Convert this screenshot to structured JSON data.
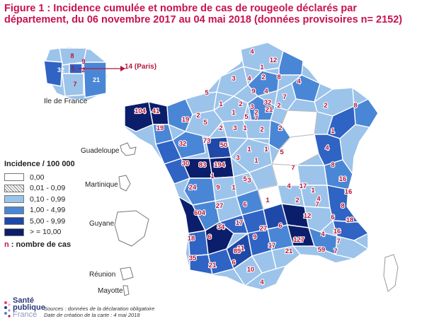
{
  "title": "Figure 1 : Incidence cumulée et nombre de cas de rougeole déclarés par département, du 06 novembre 2017 au 04 mai 2018 (données provisoires n= 2152)",
  "legend": {
    "title": "Incidence / 100 000",
    "items": [
      {
        "label": "0,00",
        "color": "#ffffff"
      },
      {
        "label": "0,01 - 0,09",
        "color": "hatched"
      },
      {
        "label": "0,10 - 0,99",
        "color": "#9cc3ea"
      },
      {
        "label": "1,00 - 4,99",
        "color": "#4a86d6"
      },
      {
        "label": "5,00 - 9,99",
        "color": "#1f49a8"
      },
      {
        "label": "> = 10,00",
        "color": "#0b1e6b"
      }
    ]
  },
  "note": {
    "prefix": "n",
    "text": " : nombre de cas"
  },
  "inset_idf": {
    "label": "Ile de France",
    "paris_callout": "14 (Paris)",
    "counts": [
      "8",
      "9",
      "2",
      "32",
      "5",
      "7",
      "21"
    ]
  },
  "territories": [
    "Guadeloupe",
    "Martinique",
    "Guyane",
    "Réunion",
    "Mayotte"
  ],
  "brand": {
    "line1": "Santé",
    "line2": "publique",
    "line3": "France"
  },
  "sources": {
    "line1": "Sources : données de la déclaration obligatoire",
    "line2": "Date de création de la carte : 4 mai 2018"
  },
  "department_counts": [
    "4",
    "12",
    "1",
    "4",
    "3",
    "4",
    "2",
    "8",
    "9",
    "4",
    "7",
    "5",
    "1",
    "2",
    "2",
    "2",
    "8",
    "3",
    "32",
    "1",
    "2",
    "2",
    "2",
    "3",
    "5",
    "7",
    "21",
    "104",
    "41",
    "19",
    "19",
    "5",
    "1",
    "2",
    "2",
    "1",
    "32",
    "73",
    "50",
    "1",
    "1",
    "30",
    "83",
    "194",
    "3",
    "1",
    "5",
    "4",
    "1",
    "7",
    "8",
    "5",
    "24",
    "16",
    "1",
    "3",
    "4",
    "17",
    "1",
    "16",
    "27",
    "9",
    "6",
    "7",
    "4",
    "8",
    "604",
    "1",
    "2",
    "6",
    "18",
    "34",
    "17",
    "27",
    "6",
    "12",
    "18",
    "6",
    "127",
    "4",
    "16",
    "9",
    "11",
    "89",
    "17",
    "21",
    "7",
    "35",
    "21",
    "6",
    "10",
    "7",
    "59",
    "4"
  ]
}
